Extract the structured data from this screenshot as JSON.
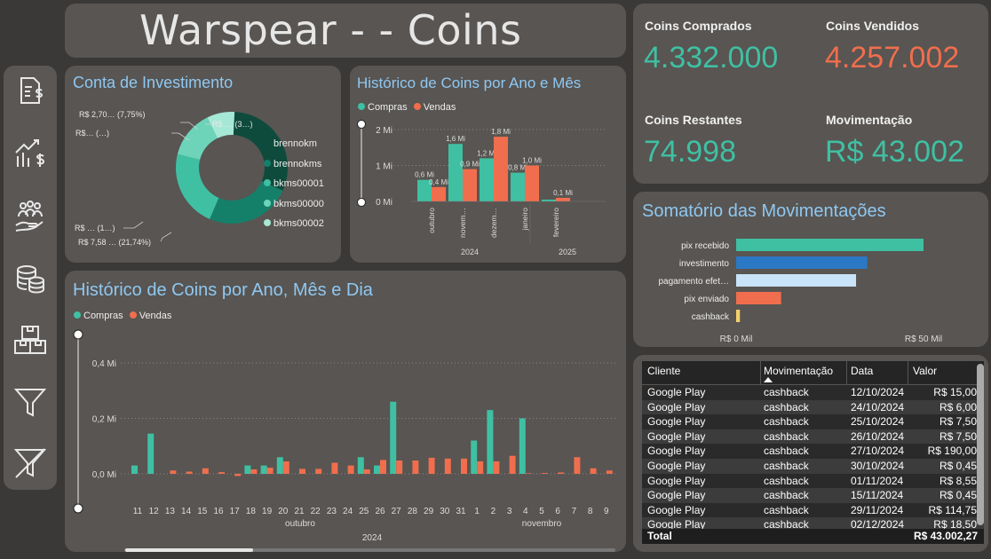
{
  "title": "Warspear - - Coins",
  "colors": {
    "compras": "#3fc0a3",
    "vendas": "#f06e4d",
    "kpi_green": "#3fc0a3",
    "kpi_orange": "#f06e4d"
  },
  "sidebar": {
    "icons": [
      "invoice-dollar-icon",
      "chart-growth-dollar-icon",
      "team-money-icon",
      "coins-stack-icon",
      "boxes-icon",
      "filter-icon",
      "clear-filter-icon"
    ]
  },
  "donut": {
    "title": "Conta de Investimento",
    "legend": [
      "brennokm",
      "brennokms",
      "bkms00001",
      "bkms00000",
      "bkms00002"
    ],
    "slice_colors": [
      "#0f4b3c",
      "#15806a",
      "#3fc0a3",
      "#6dd4b9",
      "#a6e8d6"
    ],
    "values": [
      30,
      24,
      21.74,
      13.5,
      7.75
    ],
    "labels": {
      "l1": "R$ 2,70… (7,75%)",
      "l2": "R$… (…)",
      "l3": "R$ … (3…)",
      "l4": "R$ … (1…)",
      "l5": "R$ 7,58 … (21,74%)"
    }
  },
  "monthly": {
    "title": "Histórico de Coins por Ano e Mês",
    "legend": {
      "compras": "Compras",
      "vendas": "Vendas"
    },
    "y_ticks": [
      "2 Mi",
      "1 Mi",
      "0 Mi"
    ],
    "months": [
      "outubro",
      "novem…",
      "dezem…",
      "janeiro",
      "fevereiro"
    ],
    "years": [
      "2024",
      "2025"
    ]
  },
  "chart_data": [
    {
      "type": "bar",
      "title": "Histórico de Coins por Ano e Mês",
      "categories": [
        "outubro",
        "novem…",
        "dezem…",
        "janeiro",
        "fevereiro"
      ],
      "series": [
        {
          "name": "Compras",
          "values": [
            0.6,
            1.6,
            1.2,
            0.8,
            0.05
          ],
          "labels": [
            "0,6 Mi",
            "1,6 Mi",
            "1,2 Mi",
            "0,8 Mi",
            ""
          ]
        },
        {
          "name": "Vendas",
          "values": [
            0.4,
            0.9,
            1.8,
            1.0,
            0.1
          ],
          "labels": [
            "0,4 Mi",
            "0,9 Mi",
            "1,8 Mi",
            "1,0 Mi",
            "0,1 Mi"
          ]
        }
      ],
      "ylim": [
        0,
        2
      ]
    },
    {
      "type": "bar",
      "title": "Histórico de Coins por Ano, Mês e Dia",
      "categories": [
        "11",
        "12",
        "13",
        "14",
        "15",
        "16",
        "17",
        "18",
        "19",
        "20",
        "21",
        "22",
        "23",
        "24",
        "25",
        "26",
        "27",
        "28",
        "29",
        "30",
        "31",
        "1",
        "2",
        "3",
        "4",
        "5",
        "6",
        "7",
        "8",
        "9"
      ],
      "series": [
        {
          "name": "Compras",
          "values": [
            0.03,
            0.145,
            0,
            0,
            0,
            0,
            0,
            0.03,
            0.03,
            0.06,
            0,
            0,
            0,
            0,
            0.06,
            0.03,
            0.26,
            0,
            0,
            0,
            0,
            0.12,
            0.23,
            0,
            0.2,
            0,
            0,
            0,
            0,
            0
          ]
        },
        {
          "name": "Vendas",
          "values": [
            0,
            0,
            0.012,
            0.008,
            0.02,
            0.006,
            -0.008,
            0.016,
            0.022,
            0.045,
            0.018,
            0.018,
            0.04,
            0.03,
            0.016,
            0.05,
            0.048,
            0.048,
            0.058,
            0.055,
            0.055,
            0.045,
            0.045,
            0.065,
            0.002,
            0.003,
            0.005,
            0.06,
            0.02,
            0.012
          ]
        }
      ],
      "ylim": [
        0,
        0.4
      ],
      "y_ticks": [
        "0,4 Mi",
        "0,2 Mi",
        "0,0 Mi"
      ]
    },
    {
      "type": "bar",
      "orientation": "horizontal",
      "title": "Somatório das Movimentações",
      "categories": [
        "pix recebido",
        "investimento",
        "pagamento efet…",
        "pix enviado",
        "cashback"
      ],
      "values": [
        50,
        35,
        32,
        12,
        1
      ],
      "colors": [
        "#3fc0a3",
        "#2b78c4",
        "#c9e3f8",
        "#f06e4d",
        "#f5d06a"
      ],
      "x_ticks": [
        "R$ 0 Mil",
        "R$ 50 Mil"
      ]
    }
  ],
  "daily": {
    "title": "Histórico de Coins por Ano, Mês e Dia",
    "legend": {
      "compras": "Compras",
      "vendas": "Vendas"
    },
    "months": {
      "oct": "outubro",
      "nov": "novembro"
    },
    "year": "2024"
  },
  "kpis": {
    "comprados": {
      "label": "Coins Comprados",
      "value": "4.332.000"
    },
    "vendidos": {
      "label": "Coins Vendidos",
      "value": "4.257.002"
    },
    "restantes": {
      "label": "Coins Restantes",
      "value": "74.998"
    },
    "movimentacao": {
      "label": "Movimentação",
      "value": "R$ 43.002"
    }
  },
  "somatorio": {
    "title": "Somatório das Movimentações"
  },
  "table": {
    "headers": [
      "Cliente",
      "Movimentação",
      "Data",
      "Valor"
    ],
    "rows": [
      [
        "Google Play",
        "cashback",
        "12/10/2024",
        "R$ 15,00"
      ],
      [
        "Google Play",
        "cashback",
        "24/10/2024",
        "R$ 6,00"
      ],
      [
        "Google Play",
        "cashback",
        "25/10/2024",
        "R$ 7,50"
      ],
      [
        "Google Play",
        "cashback",
        "26/10/2024",
        "R$ 7,50"
      ],
      [
        "Google Play",
        "cashback",
        "27/10/2024",
        "R$ 190,00"
      ],
      [
        "Google Play",
        "cashback",
        "30/10/2024",
        "R$ 0,45"
      ],
      [
        "Google Play",
        "cashback",
        "01/11/2024",
        "R$ 8,55"
      ],
      [
        "Google Play",
        "cashback",
        "15/11/2024",
        "R$ 0,45"
      ],
      [
        "Google Play",
        "cashback",
        "29/11/2024",
        "R$ 114,75"
      ],
      [
        "Google Play",
        "cashback",
        "02/12/2024",
        "R$ 18,50"
      ]
    ],
    "total_label": "Total",
    "total_value": "R$ 43.002,27"
  }
}
